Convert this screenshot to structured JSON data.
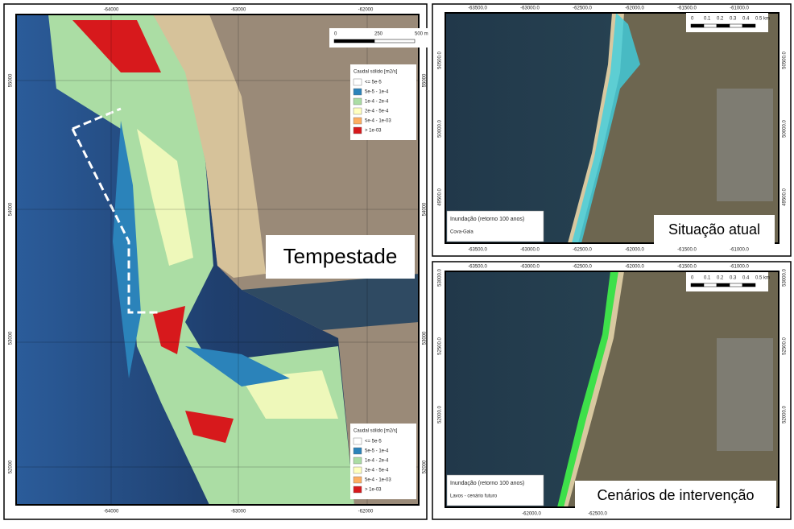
{
  "main_map": {
    "label": "Tempestade",
    "top_ticks": [
      "-64000",
      "-63000",
      "-62000"
    ],
    "bottom_ticks": [
      "-64000",
      "-63000",
      "-62000"
    ],
    "left_ticks": [
      "55000",
      "54000",
      "53000",
      "52000"
    ],
    "right_ticks": [
      "55000",
      "54000",
      "53000",
      "52000"
    ],
    "scale": [
      "0",
      "250",
      "500 m"
    ],
    "legends": [
      {
        "title": "Caudal sólido [m2/s]",
        "items": [
          "<= 5e-5",
          "5e-5 - 1e-4",
          "1e-4 - 2e-4",
          "2e-4 - 5e-4",
          "5e-4 - 1e-03",
          "> 1e-03"
        ],
        "colors": [
          "#ffffff",
          "#2b83ba",
          "#abdda4",
          "#ffffbf",
          "#fdae61",
          "#d7191c"
        ]
      },
      {
        "title": "Caudal sólido [m2/s]",
        "items": [
          "<= 5e-5",
          "5e-5 - 1e-4",
          "1e-4 - 2e-4",
          "2e-4 - 5e-4",
          "5e-4 - 1e-03",
          "> 1e-03"
        ],
        "colors": [
          "#ffffff",
          "#2b83ba",
          "#abdda4",
          "#ffffbf",
          "#fdae61",
          "#d7191c"
        ]
      }
    ]
  },
  "current_map": {
    "label": "Situação atual",
    "top_ticks": [
      "-63500.0",
      "-63000.0",
      "-62500.0",
      "-62000.0",
      "-61500.0",
      "-61000.0"
    ],
    "bottom_ticks": [
      "-63500.0",
      "-63000.0",
      "-62500.0",
      "-62000.0",
      "-61500.0",
      "-61000.0"
    ],
    "left_ticks": [
      "50500.0",
      "50000.0",
      "49500.0"
    ],
    "right_ticks": [
      "50500.0",
      "50000.0",
      "49500.0"
    ],
    "scale": [
      "0",
      "0.1",
      "0.2",
      "0.3",
      "0.4",
      "0.5 km"
    ],
    "info": [
      "Inundação (retorno 100 anos)",
      "Cova-Gala"
    ]
  },
  "future_map": {
    "label": "Cenários de intervenção",
    "top_ticks": [
      "-63500.0",
      "-63000.0",
      "-62500.0",
      "-62000.0",
      "-61500.0",
      "-61000.0"
    ],
    "bottom_ticks": [
      "-62000.0",
      "-62500.0"
    ],
    "left_ticks": [
      "53000.0",
      "52500.0",
      "52000.0"
    ],
    "right_ticks": [
      "53000.0",
      "52500.0",
      "52000.0"
    ],
    "scale": [
      "0",
      "0.1",
      "0.2",
      "0.3",
      "0.4",
      "0.5 km"
    ],
    "info": [
      "Inundação (retorno 100 anos)",
      "Lavos - cenário futuro"
    ]
  }
}
